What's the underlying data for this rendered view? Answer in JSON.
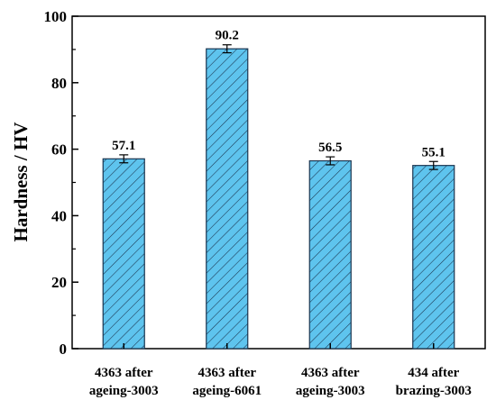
{
  "chart_data": {
    "type": "bar",
    "title": "",
    "xlabel": "",
    "ylabel": "Hardness / HV",
    "ylim": [
      0,
      100
    ],
    "yticks": [
      0,
      20,
      40,
      60,
      80,
      100
    ],
    "grid": false,
    "legend": "none",
    "categories": [
      [
        "4363 after",
        "ageing-3003"
      ],
      [
        "4363 after",
        "ageing-6061"
      ],
      [
        "4363 after",
        "ageing-3003"
      ],
      [
        "434 after",
        "brazing-3003"
      ]
    ],
    "values": [
      57.1,
      90.2,
      56.5,
      55.1
    ],
    "value_labels": [
      "57.1",
      "90.2",
      "56.5",
      "55.1"
    ],
    "errors": [
      1.2,
      1.2,
      1.2,
      1.2
    ],
    "bar_fill": "#5ec4ee",
    "bar_hatch": "diagonal"
  }
}
